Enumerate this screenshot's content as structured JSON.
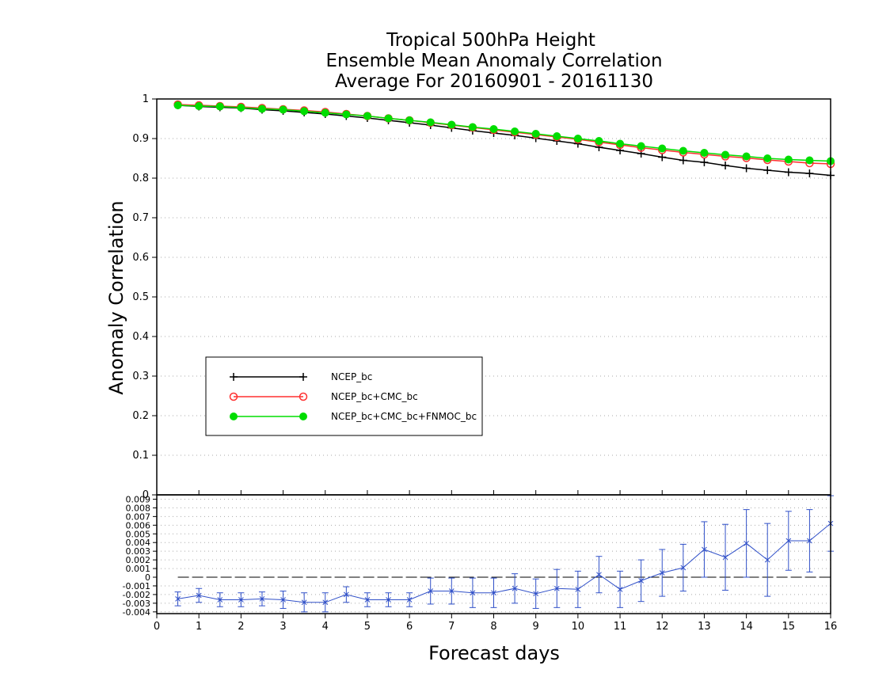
{
  "chart_data": {
    "type": "line",
    "title_lines": [
      "Tropical 500hPa Height",
      "Ensemble Mean Anomaly Correlation",
      "Average For 20160901 - 20161130"
    ],
    "xlabel": "Forecast days",
    "ylabel": "Anomaly Correlation",
    "xlim": [
      0,
      16
    ],
    "x_ticks": [
      "0",
      "1",
      "2",
      "3",
      "4",
      "5",
      "6",
      "7",
      "8",
      "9",
      "10",
      "11",
      "12",
      "13",
      "14",
      "15",
      "16"
    ],
    "ylim": [
      0,
      1
    ],
    "y_ticks": [
      "0",
      "0.1",
      "0.2",
      "0.3",
      "0.4",
      "0.5",
      "0.6",
      "0.7",
      "0.8",
      "0.9",
      "1"
    ],
    "grid": true,
    "x": [
      0.5,
      1,
      1.5,
      2,
      2.5,
      3,
      3.5,
      4,
      4.5,
      5,
      5.5,
      6,
      6.5,
      7,
      7.5,
      8,
      8.5,
      9,
      9.5,
      10,
      10.5,
      11,
      11.5,
      12,
      12.5,
      13,
      13.5,
      14,
      14.5,
      15,
      15.5,
      16
    ],
    "series": [
      {
        "name": "NCEP_bc",
        "color": "#000000",
        "marker": "plus",
        "values": [
          0.984,
          0.981,
          0.979,
          0.977,
          0.973,
          0.97,
          0.966,
          0.962,
          0.957,
          0.952,
          0.946,
          0.94,
          0.934,
          0.927,
          0.92,
          0.914,
          0.908,
          0.901,
          0.894,
          0.887,
          0.878,
          0.87,
          0.862,
          0.853,
          0.845,
          0.84,
          0.832,
          0.825,
          0.82,
          0.815,
          0.812,
          0.807
        ]
      },
      {
        "name": "NCEP_bc+CMC_bc",
        "color": "#ff3030",
        "marker": "open-circle",
        "values": [
          0.986,
          0.984,
          0.982,
          0.98,
          0.977,
          0.974,
          0.971,
          0.967,
          0.962,
          0.957,
          0.951,
          0.946,
          0.94,
          0.934,
          0.928,
          0.922,
          0.916,
          0.91,
          0.904,
          0.898,
          0.891,
          0.884,
          0.877,
          0.871,
          0.865,
          0.86,
          0.855,
          0.851,
          0.846,
          0.842,
          0.838,
          0.836
        ]
      },
      {
        "name": "NCEP_bc+CMC_bc+FNMOC_bc",
        "color": "#00dd00",
        "marker": "filled-circle",
        "values": [
          0.984,
          0.982,
          0.981,
          0.978,
          0.975,
          0.973,
          0.969,
          0.965,
          0.961,
          0.957,
          0.951,
          0.946,
          0.941,
          0.935,
          0.929,
          0.924,
          0.918,
          0.912,
          0.906,
          0.9,
          0.894,
          0.887,
          0.881,
          0.875,
          0.869,
          0.864,
          0.859,
          0.855,
          0.85,
          0.847,
          0.845,
          0.843
        ]
      }
    ],
    "legend_position": "lower-left",
    "difference_panel": {
      "color": "#3050c8",
      "ylim": [
        -0.0042,
        0.0095
      ],
      "y_ticks": [
        "-0.004",
        "-0.003",
        "-0.002",
        "-0.001",
        "0",
        "0.001",
        "0.002",
        "0.003",
        "0.004",
        "0.005",
        "0.006",
        "0.007",
        "0.008",
        "0.009"
      ],
      "zero_line": true,
      "values": [
        -0.0025,
        -0.0021,
        -0.0026,
        -0.0026,
        -0.0025,
        -0.0026,
        -0.0029,
        -0.0029,
        -0.002,
        -0.0026,
        -0.0026,
        -0.0026,
        -0.0016,
        -0.0016,
        -0.0018,
        -0.0018,
        -0.0013,
        -0.0019,
        -0.0013,
        -0.0014,
        0.0003,
        -0.0014,
        -0.0004,
        0.0005,
        0.0011,
        0.0032,
        0.0023,
        0.0039,
        0.002,
        0.0042,
        0.0042,
        0.0062
      ],
      "err_low": [
        -0.0033,
        -0.0029,
        -0.0034,
        -0.0034,
        -0.0033,
        -0.0036,
        -0.004,
        -0.004,
        -0.0029,
        -0.0034,
        -0.0034,
        -0.0034,
        -0.0031,
        -0.0031,
        -0.0035,
        -0.0035,
        -0.003,
        -0.0036,
        -0.0035,
        -0.0035,
        -0.0018,
        -0.0035,
        -0.0028,
        -0.0022,
        -0.0016,
        0.0,
        -0.0015,
        0.0,
        -0.0022,
        0.0008,
        0.0006,
        0.003
      ],
      "err_high": [
        -0.0017,
        -0.0013,
        -0.0018,
        -0.0018,
        -0.0017,
        -0.0016,
        -0.0018,
        -0.0018,
        -0.0011,
        -0.0018,
        -0.0018,
        -0.0018,
        -0.0001,
        -0.0001,
        -0.0001,
        -0.0001,
        0.0004,
        -0.0002,
        0.0009,
        0.0007,
        0.0024,
        0.0007,
        0.002,
        0.0032,
        0.0038,
        0.0064,
        0.0061,
        0.0078,
        0.0062,
        0.0076,
        0.0078,
        0.0094
      ]
    }
  }
}
